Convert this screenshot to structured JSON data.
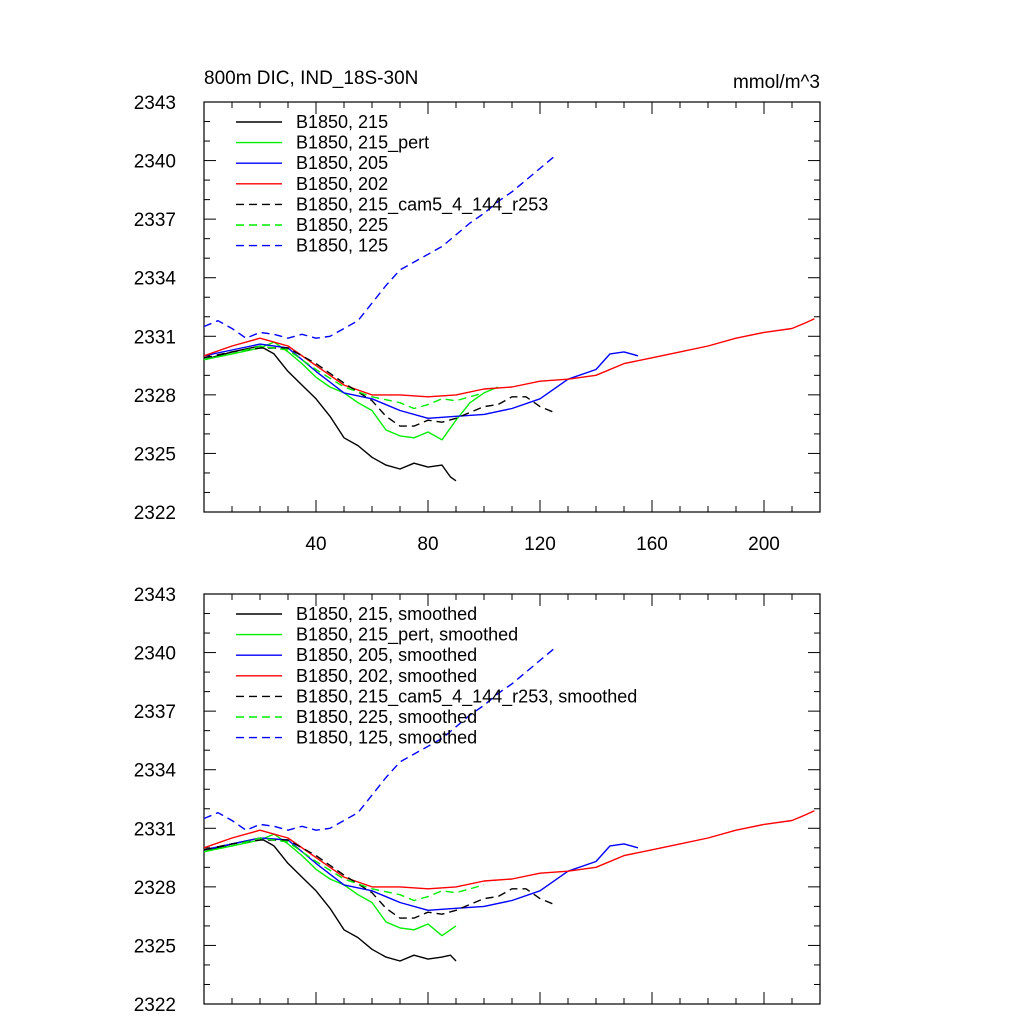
{
  "chart_data": [
    {
      "type": "line",
      "title": "800m DIC, IND_18S-30N",
      "units": "mmol/m^3",
      "xlim": [
        0,
        220
      ],
      "ylim": [
        2322,
        2343
      ],
      "xticks": [
        40,
        80,
        120,
        160,
        200
      ],
      "xtick_labels": [
        "40",
        "80",
        "120",
        "160",
        "200"
      ],
      "yticks": [
        2322,
        2325,
        2328,
        2331,
        2334,
        2337,
        2340,
        2343
      ],
      "ytick_labels": [
        "2322",
        "2325",
        "2328",
        "2331",
        "2334",
        "2337",
        "2340",
        "2343"
      ],
      "legend_position": "top-left",
      "series": [
        {
          "name": "B1850, 215",
          "color": "#000000",
          "dash": "solid",
          "x": [
            0,
            10,
            20,
            25,
            30,
            35,
            40,
            45,
            50,
            55,
            60,
            65,
            70,
            75,
            80,
            85,
            88,
            90
          ],
          "y": [
            2329.8,
            2330.2,
            2330.5,
            2330.1,
            2329.2,
            2328.5,
            2327.8,
            2326.9,
            2325.8,
            2325.4,
            2324.8,
            2324.4,
            2324.2,
            2324.5,
            2324.3,
            2324.4,
            2323.8,
            2323.6
          ]
        },
        {
          "name": "B1850, 215_pert",
          "color": "#00ee00",
          "dash": "solid",
          "x": [
            0,
            10,
            20,
            25,
            30,
            35,
            40,
            45,
            50,
            55,
            60,
            65,
            70,
            75,
            80,
            85,
            90,
            95,
            100,
            105
          ],
          "y": [
            2329.8,
            2330.1,
            2330.4,
            2330.7,
            2330.2,
            2329.6,
            2328.9,
            2328.4,
            2328.1,
            2327.6,
            2327.2,
            2326.2,
            2325.9,
            2325.8,
            2326.1,
            2325.7,
            2326.7,
            2327.6,
            2328.1,
            2328.4
          ]
        },
        {
          "name": "B1850, 205",
          "color": "#0000ff",
          "dash": "solid",
          "x": [
            0,
            10,
            20,
            30,
            40,
            50,
            60,
            70,
            80,
            90,
            100,
            110,
            120,
            130,
            140,
            145,
            150,
            155
          ],
          "y": [
            2330.0,
            2330.3,
            2330.6,
            2330.4,
            2329.2,
            2328.1,
            2327.8,
            2327.2,
            2326.8,
            2326.9,
            2327.0,
            2327.3,
            2327.8,
            2328.8,
            2329.3,
            2330.1,
            2330.2,
            2330.0
          ]
        },
        {
          "name": "B1850, 202",
          "color": "#ff0000",
          "dash": "solid",
          "x": [
            0,
            10,
            20,
            30,
            40,
            50,
            60,
            70,
            80,
            90,
            100,
            110,
            120,
            130,
            140,
            150,
            160,
            170,
            180,
            190,
            200,
            210,
            215,
            218
          ],
          "y": [
            2330.0,
            2330.5,
            2330.9,
            2330.5,
            2329.5,
            2328.5,
            2328.0,
            2328.0,
            2327.9,
            2328.0,
            2328.3,
            2328.4,
            2328.7,
            2328.8,
            2329.0,
            2329.6,
            2329.9,
            2330.2,
            2330.5,
            2330.9,
            2331.2,
            2331.4,
            2331.7,
            2331.9
          ]
        },
        {
          "name": "B1850, 215_cam5_4_144_r253",
          "color": "#000000",
          "dash": "dashed",
          "x": [
            0,
            10,
            20,
            30,
            40,
            50,
            60,
            65,
            70,
            75,
            80,
            85,
            90,
            95,
            100,
            105,
            110,
            115,
            120,
            125
          ],
          "y": [
            2329.9,
            2330.2,
            2330.4,
            2330.4,
            2329.6,
            2328.6,
            2327.7,
            2326.9,
            2326.4,
            2326.4,
            2326.7,
            2326.6,
            2326.8,
            2327.1,
            2327.4,
            2327.5,
            2327.9,
            2327.9,
            2327.4,
            2327.1
          ]
        },
        {
          "name": "B1850, 225",
          "color": "#00ee00",
          "dash": "dashed",
          "x": [
            0,
            10,
            20,
            30,
            40,
            50,
            60,
            70,
            75,
            80,
            85,
            90,
            95,
            100
          ],
          "y": [
            2329.8,
            2330.1,
            2330.5,
            2330.3,
            2329.3,
            2328.4,
            2327.9,
            2327.6,
            2327.3,
            2327.5,
            2327.8,
            2327.7,
            2327.9,
            2328.1
          ]
        },
        {
          "name": "B1850, 125",
          "color": "#0000ff",
          "dash": "dashed",
          "x": [
            0,
            5,
            10,
            15,
            20,
            25,
            30,
            35,
            40,
            45,
            50,
            55,
            60,
            65,
            70,
            75,
            80,
            85,
            90,
            95,
            100,
            105,
            110,
            115,
            120,
            125
          ],
          "y": [
            2331.5,
            2331.8,
            2331.4,
            2330.9,
            2331.2,
            2331.1,
            2330.9,
            2331.1,
            2330.9,
            2331.0,
            2331.4,
            2331.8,
            2332.7,
            2333.6,
            2334.4,
            2334.8,
            2335.2,
            2335.6,
            2336.2,
            2336.8,
            2337.3,
            2337.9,
            2338.4,
            2339.0,
            2339.6,
            2340.2
          ]
        }
      ]
    },
    {
      "type": "line",
      "xlim": [
        0,
        220
      ],
      "ylim": [
        2322,
        2343
      ],
      "xticks": [
        40,
        80,
        120,
        160,
        200
      ],
      "xtick_labels": [],
      "yticks": [
        2322,
        2325,
        2328,
        2331,
        2334,
        2337,
        2340,
        2343
      ],
      "ytick_labels": [
        "2322",
        "2325",
        "2328",
        "2331",
        "2334",
        "2337",
        "2340",
        "2343"
      ],
      "legend_position": "top-left",
      "series": [
        {
          "name": "B1850, 215, smoothed",
          "color": "#000000",
          "dash": "solid",
          "x": [
            0,
            10,
            20,
            25,
            30,
            35,
            40,
            45,
            50,
            55,
            60,
            65,
            70,
            75,
            80,
            85,
            88,
            90
          ],
          "y": [
            2329.8,
            2330.2,
            2330.5,
            2330.1,
            2329.2,
            2328.5,
            2327.8,
            2326.9,
            2325.8,
            2325.4,
            2324.8,
            2324.4,
            2324.2,
            2324.5,
            2324.3,
            2324.4,
            2324.5,
            2324.2
          ]
        },
        {
          "name": "B1850, 215_pert, smoothed",
          "color": "#00ee00",
          "dash": "solid",
          "x": [
            0,
            10,
            20,
            25,
            30,
            35,
            40,
            45,
            50,
            55,
            60,
            65,
            70,
            75,
            80,
            85,
            90
          ],
          "y": [
            2329.8,
            2330.1,
            2330.4,
            2330.7,
            2330.2,
            2329.6,
            2328.9,
            2328.4,
            2328.1,
            2327.6,
            2327.2,
            2326.2,
            2325.9,
            2325.8,
            2326.1,
            2325.5,
            2326.0
          ]
        },
        {
          "name": "B1850, 205, smoothed",
          "color": "#0000ff",
          "dash": "solid",
          "x": [
            0,
            10,
            20,
            30,
            40,
            50,
            60,
            70,
            80,
            90,
            100,
            110,
            120,
            130,
            140,
            145,
            150,
            155
          ],
          "y": [
            2329.9,
            2330.2,
            2330.5,
            2330.4,
            2329.2,
            2328.1,
            2327.8,
            2327.2,
            2326.8,
            2326.9,
            2327.0,
            2327.3,
            2327.8,
            2328.8,
            2329.3,
            2330.1,
            2330.2,
            2330.0
          ]
        },
        {
          "name": "B1850, 202, smoothed",
          "color": "#ff0000",
          "dash": "solid",
          "x": [
            0,
            10,
            20,
            30,
            40,
            50,
            60,
            70,
            80,
            90,
            100,
            110,
            120,
            130,
            140,
            150,
            160,
            170,
            180,
            190,
            200,
            210,
            215,
            218
          ],
          "y": [
            2330.0,
            2330.5,
            2330.9,
            2330.5,
            2329.5,
            2328.5,
            2328.0,
            2328.0,
            2327.9,
            2328.0,
            2328.3,
            2328.4,
            2328.7,
            2328.8,
            2329.0,
            2329.6,
            2329.9,
            2330.2,
            2330.5,
            2330.9,
            2331.2,
            2331.4,
            2331.7,
            2331.9
          ]
        },
        {
          "name": "B1850, 215_cam5_4_144_r253, smoothed",
          "color": "#000000",
          "dash": "dashed",
          "x": [
            0,
            10,
            20,
            30,
            40,
            50,
            60,
            65,
            70,
            75,
            80,
            85,
            90,
            95,
            100,
            105,
            110,
            115,
            120,
            125
          ],
          "y": [
            2329.9,
            2330.2,
            2330.4,
            2330.4,
            2329.6,
            2328.6,
            2327.7,
            2326.9,
            2326.4,
            2326.4,
            2326.7,
            2326.6,
            2326.8,
            2327.1,
            2327.4,
            2327.5,
            2327.9,
            2327.9,
            2327.4,
            2327.1
          ]
        },
        {
          "name": "B1850, 225, smoothed",
          "color": "#00ee00",
          "dash": "dashed",
          "x": [
            0,
            10,
            20,
            30,
            40,
            50,
            60,
            70,
            75,
            80,
            85,
            90,
            95,
            100
          ],
          "y": [
            2329.8,
            2330.1,
            2330.5,
            2330.3,
            2329.3,
            2328.4,
            2327.9,
            2327.6,
            2327.3,
            2327.5,
            2327.8,
            2327.7,
            2327.9,
            2328.1
          ]
        },
        {
          "name": "B1850, 125, smoothed",
          "color": "#0000ff",
          "dash": "dashed",
          "x": [
            0,
            5,
            10,
            15,
            20,
            25,
            30,
            35,
            40,
            45,
            50,
            55,
            60,
            65,
            70,
            75,
            80,
            85,
            90,
            95,
            100,
            105,
            110,
            115,
            120,
            125
          ],
          "y": [
            2331.5,
            2331.8,
            2331.4,
            2330.9,
            2331.2,
            2331.1,
            2330.9,
            2331.1,
            2330.9,
            2331.0,
            2331.4,
            2331.8,
            2332.7,
            2333.6,
            2334.4,
            2334.8,
            2335.2,
            2335.6,
            2336.2,
            2336.8,
            2337.3,
            2337.9,
            2338.4,
            2339.0,
            2339.6,
            2340.2
          ]
        }
      ]
    }
  ]
}
